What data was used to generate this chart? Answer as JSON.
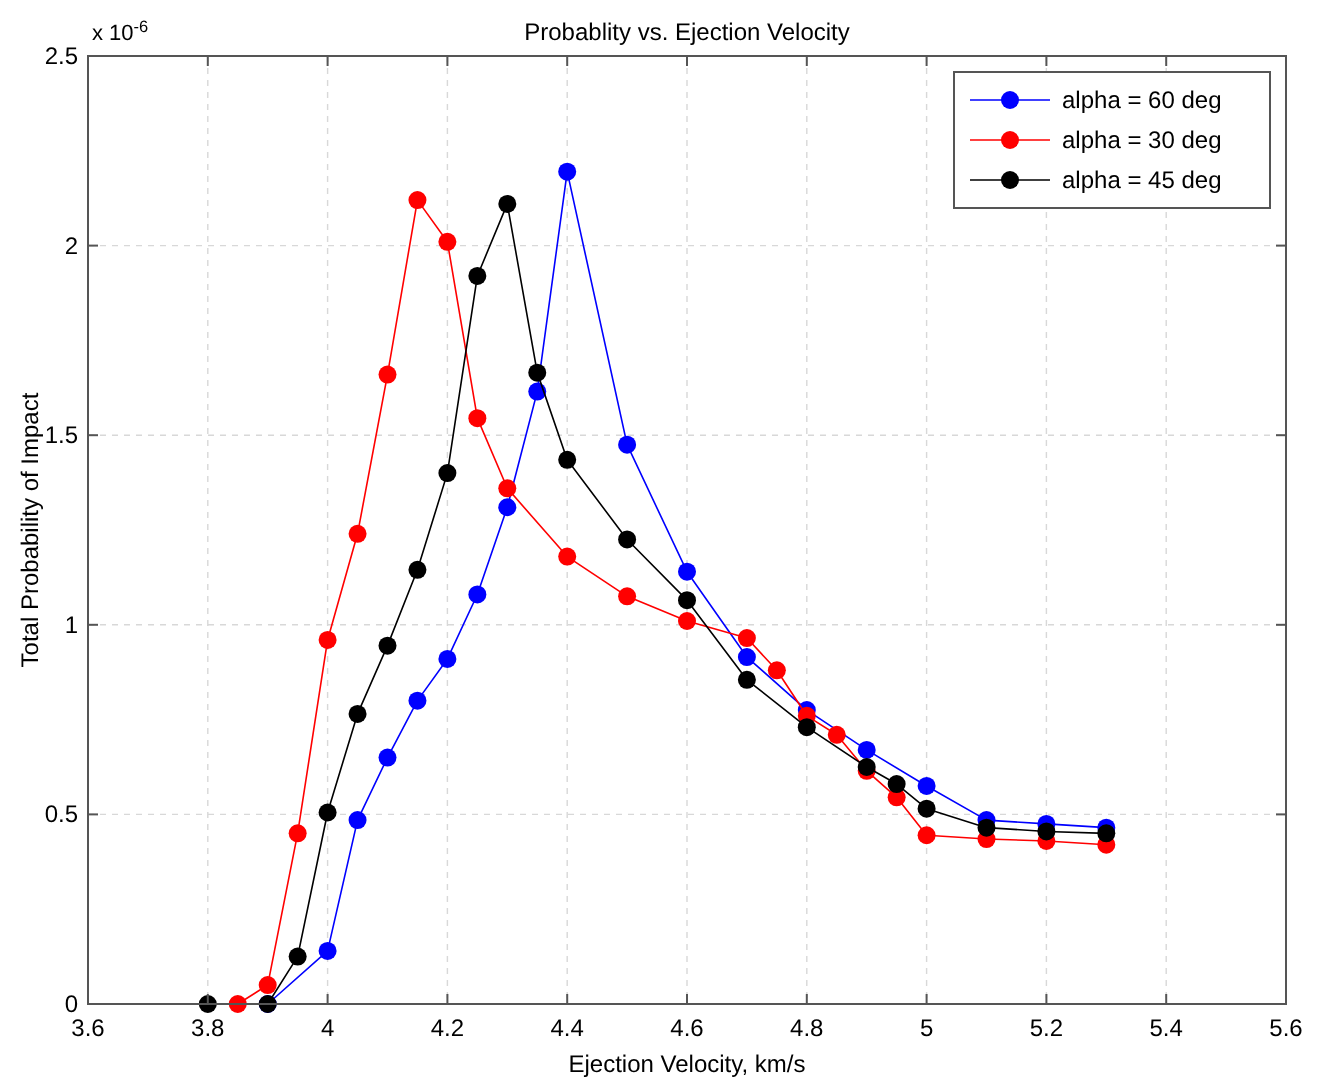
{
  "chart_data": {
    "type": "line",
    "title": "Probablity vs. Ejection Velocity",
    "xlabel": "Ejection Velocity, km/s",
    "ylabel": "Total Probability of Impact",
    "annotations": [
      "x 10$^{-6}$"
    ],
    "xlim": [
      3.6,
      5.6
    ],
    "xticks": [
      3.6,
      3.8,
      4,
      4.2,
      4.4,
      4.6,
      4.8,
      5,
      5.2,
      5.4,
      5.6
    ],
    "ylim": [
      0,
      2.5
    ],
    "yticks": [
      0,
      0.5,
      1,
      1.5,
      2,
      2.5
    ],
    "grid": true,
    "legend": "top right",
    "marker": "circle",
    "line_style": "solid",
    "series": [
      {
        "name": "alpha = 60 deg",
        "color": "#0000ff",
        "x": [
          3.9,
          4.0,
          4.05,
          4.1,
          4.15,
          4.2,
          4.25,
          4.3,
          4.35,
          4.4,
          4.5,
          4.6,
          4.7,
          4.8,
          4.9,
          5.0,
          5.1,
          5.2,
          5.3
        ],
        "values": [
          0,
          0.14,
          0.485,
          0.65,
          0.8,
          0.91,
          1.08,
          1.31,
          1.615,
          2.195,
          1.475,
          1.14,
          0.915,
          0.775,
          0.67,
          0.575,
          0.485,
          0.475,
          0.465
        ]
      },
      {
        "name": "alpha = 30 deg",
        "color": "#ff0000",
        "x": [
          3.85,
          3.9,
          3.95,
          4.0,
          4.05,
          4.1,
          4.15,
          4.2,
          4.25,
          4.3,
          4.4,
          4.5,
          4.6,
          4.7,
          4.75,
          4.8,
          4.85,
          4.9,
          4.95,
          5.0,
          5.1,
          5.2,
          5.3
        ],
        "values": [
          0,
          0.05,
          0.45,
          0.96,
          1.24,
          1.66,
          2.12,
          2.01,
          1.545,
          1.36,
          1.18,
          1.075,
          1.01,
          0.965,
          0.88,
          0.76,
          0.71,
          0.615,
          0.545,
          0.445,
          0.435,
          0.43,
          0.42
        ]
      },
      {
        "name": "alpha = 45 deg",
        "color": "#000000",
        "x": [
          3.8,
          3.9,
          3.95,
          4.0,
          4.05,
          4.1,
          4.15,
          4.2,
          4.25,
          4.3,
          4.35,
          4.4,
          4.5,
          4.6,
          4.7,
          4.8,
          4.9,
          4.95,
          5.0,
          5.1,
          5.2,
          5.3
        ],
        "values": [
          0,
          0,
          0.125,
          0.505,
          0.765,
          0.945,
          1.145,
          1.4,
          1.92,
          2.11,
          1.665,
          1.435,
          1.225,
          1.065,
          0.855,
          0.73,
          0.625,
          0.58,
          0.515,
          0.465,
          0.455,
          0.45
        ]
      }
    ]
  }
}
